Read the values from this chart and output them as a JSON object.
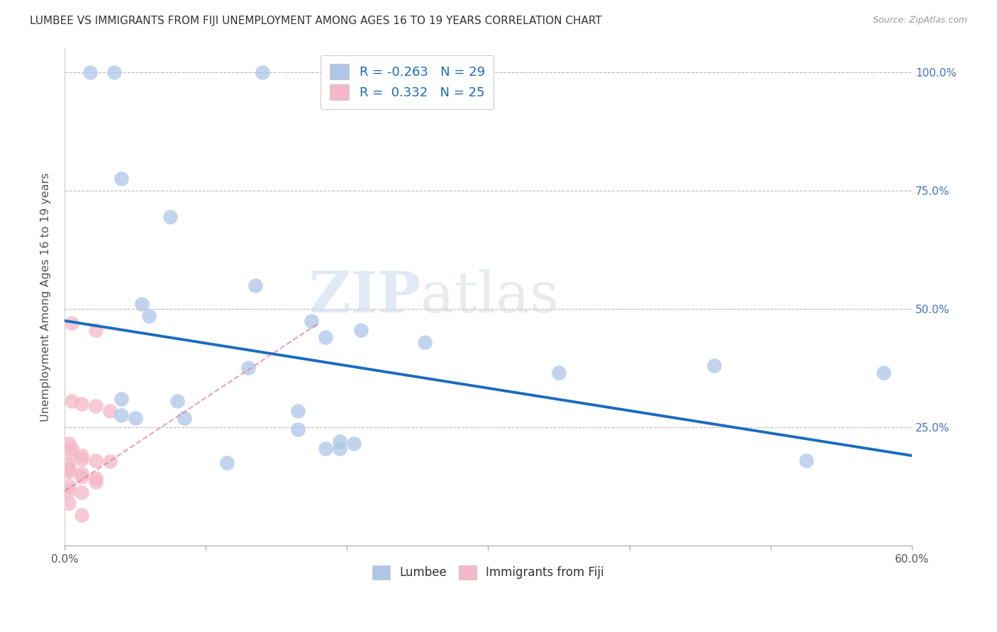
{
  "title": "LUMBEE VS IMMIGRANTS FROM FIJI UNEMPLOYMENT AMONG AGES 16 TO 19 YEARS CORRELATION CHART",
  "source": "Source: ZipAtlas.com",
  "ylabel": "Unemployment Among Ages 16 to 19 years",
  "xlim": [
    0.0,
    0.6
  ],
  "ylim": [
    0.0,
    1.05
  ],
  "xticks": [
    0.0,
    0.1,
    0.2,
    0.3,
    0.4,
    0.5,
    0.6
  ],
  "xticklabels": [
    "0.0%",
    "",
    "",
    "",
    "",
    "",
    "60.0%"
  ],
  "yticks_right": [
    0.0,
    0.25,
    0.5,
    0.75,
    1.0
  ],
  "yticklabels_right": [
    "",
    "25.0%",
    "50.0%",
    "75.0%",
    "100.0%"
  ],
  "R_lumbee": -0.263,
  "N_lumbee": 29,
  "R_fiji": 0.332,
  "N_fiji": 25,
  "lumbee_color": "#aec6e8",
  "fiji_color": "#f4b8c8",
  "lumbee_line_color": "#1a6bbf",
  "fiji_line_color": "#e07090",
  "watermark_left": "ZIP",
  "watermark_right": "atlas",
  "lumbee_scatter": [
    [
      0.018,
      1.0
    ],
    [
      0.035,
      1.0
    ],
    [
      0.14,
      1.0
    ],
    [
      0.04,
      0.775
    ],
    [
      0.075,
      0.695
    ],
    [
      0.055,
      0.51
    ],
    [
      0.135,
      0.55
    ],
    [
      0.175,
      0.475
    ],
    [
      0.21,
      0.455
    ],
    [
      0.06,
      0.485
    ],
    [
      0.13,
      0.375
    ],
    [
      0.185,
      0.44
    ],
    [
      0.255,
      0.43
    ],
    [
      0.35,
      0.365
    ],
    [
      0.58,
      0.365
    ],
    [
      0.04,
      0.31
    ],
    [
      0.08,
      0.305
    ],
    [
      0.165,
      0.285
    ],
    [
      0.195,
      0.22
    ],
    [
      0.205,
      0.215
    ],
    [
      0.115,
      0.175
    ],
    [
      0.46,
      0.38
    ],
    [
      0.04,
      0.275
    ],
    [
      0.05,
      0.27
    ],
    [
      0.085,
      0.27
    ],
    [
      0.165,
      0.245
    ],
    [
      0.185,
      0.205
    ],
    [
      0.195,
      0.205
    ],
    [
      0.525,
      0.18
    ]
  ],
  "fiji_scatter": [
    [
      0.005,
      0.47
    ],
    [
      0.022,
      0.455
    ],
    [
      0.005,
      0.305
    ],
    [
      0.012,
      0.3
    ],
    [
      0.022,
      0.295
    ],
    [
      0.032,
      0.285
    ],
    [
      0.003,
      0.215
    ],
    [
      0.005,
      0.205
    ],
    [
      0.005,
      0.195
    ],
    [
      0.012,
      0.19
    ],
    [
      0.012,
      0.182
    ],
    [
      0.022,
      0.18
    ],
    [
      0.032,
      0.178
    ],
    [
      0.003,
      0.17
    ],
    [
      0.003,
      0.162
    ],
    [
      0.003,
      0.155
    ],
    [
      0.012,
      0.152
    ],
    [
      0.012,
      0.145
    ],
    [
      0.022,
      0.142
    ],
    [
      0.022,
      0.135
    ],
    [
      0.003,
      0.125
    ],
    [
      0.003,
      0.115
    ],
    [
      0.012,
      0.112
    ],
    [
      0.003,
      0.09
    ],
    [
      0.012,
      0.065
    ]
  ],
  "lumbee_line_x": [
    0.0,
    0.6
  ],
  "lumbee_line_y": [
    0.475,
    0.19
  ],
  "fiji_line_x": [
    0.0,
    0.18
  ],
  "fiji_line_y": [
    0.115,
    0.47
  ]
}
